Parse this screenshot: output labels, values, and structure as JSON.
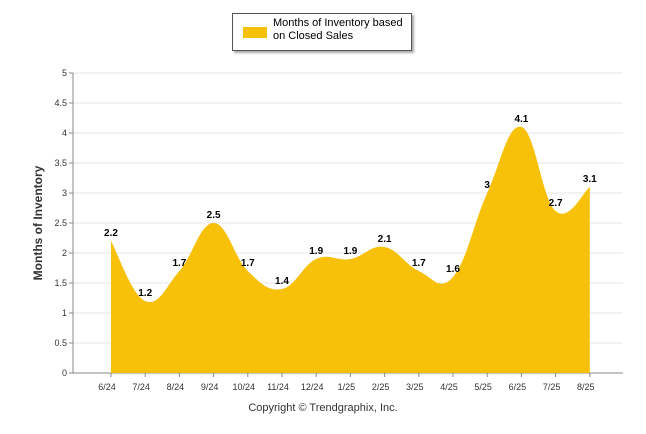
{
  "chart_data": {
    "type": "area",
    "categories": [
      "6/24",
      "7/24",
      "8/24",
      "9/24",
      "10/24",
      "11/24",
      "12/24",
      "1/25",
      "2/25",
      "3/25",
      "4/25",
      "5/25",
      "6/25",
      "7/25",
      "8/25"
    ],
    "series": [
      {
        "name": "Months of Inventory based on Closed Sales",
        "values": [
          2.2,
          1.2,
          1.7,
          2.5,
          1.7,
          1.4,
          1.9,
          1.9,
          2.1,
          1.7,
          1.6,
          3,
          4.1,
          2.7,
          3.1
        ],
        "labels": [
          "2.2",
          "1.2",
          "1.7",
          "2.5",
          "1.7",
          "1.4",
          "1.9",
          "1.9",
          "2.1",
          "1.7",
          "1.6",
          "3",
          "4.1",
          "2.7",
          "3.1"
        ],
        "color": "#F7C10A"
      }
    ],
    "ylabel": "Months of Inventory",
    "xlabel": "",
    "ylim": [
      0,
      5
    ],
    "yticks": [
      "0",
      "0.5",
      "1",
      "1.5",
      "2",
      "2.5",
      "3",
      "3.5",
      "4",
      "4.5",
      "5"
    ],
    "grid": true,
    "legend_placement": "top-center"
  },
  "legend": {
    "label": "Months of Inventory based on Closed Sales"
  },
  "footer": {
    "copyright": "Copyright © Trendgraphix, Inc."
  }
}
